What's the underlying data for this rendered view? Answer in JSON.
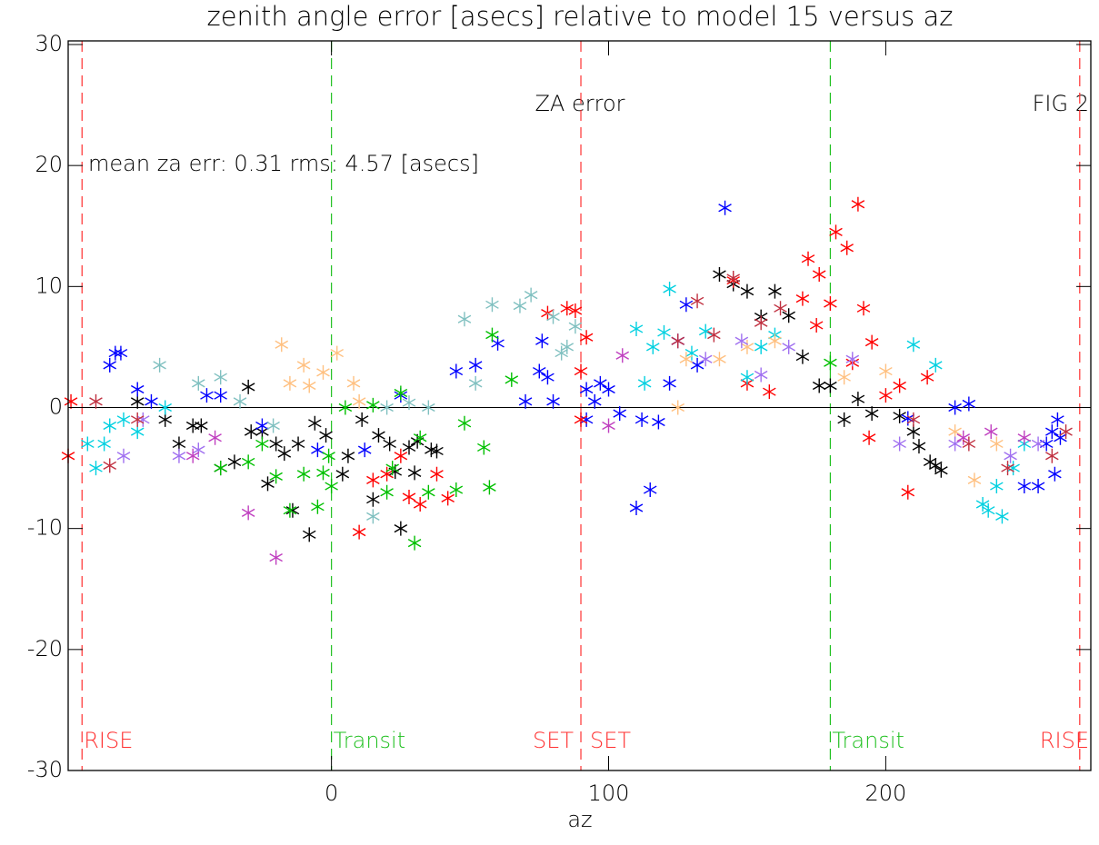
{
  "chart_data": {
    "type": "scatter",
    "title": "zenith angle error [asecs] relative to model 15 versus az",
    "x_label": "az",
    "annotations": [
      "ZA error",
      "FIG  2",
      "mean za err: 0.31 rms: 4.57 [asecs]"
    ],
    "xlim": [
      -95,
      274
    ],
    "ylim": [
      -30,
      30.3
    ],
    "xticks": [
      0,
      100,
      200
    ],
    "yticks": [
      -30,
      -20,
      -10,
      0,
      10,
      20,
      30
    ],
    "hlines": [
      0
    ],
    "vlines": [
      {
        "x": -90,
        "color": "#ff3030",
        "labels": [
          "RISE"
        ]
      },
      {
        "x": 0,
        "color": "#20c020",
        "labels": [
          "Transit"
        ]
      },
      {
        "x": 90,
        "color": "#ff3030",
        "labels": [
          "SET",
          "SET"
        ]
      },
      {
        "x": 180,
        "color": "#20c020",
        "labels": [
          "Transit"
        ]
      },
      {
        "x": 270,
        "color": "#ff3030",
        "labels": [
          "RISE"
        ]
      }
    ],
    "series": [
      {
        "color": "#000000",
        "x": [
          -70,
          -60,
          -55,
          -50,
          -47,
          -40,
          -35,
          -30,
          -29,
          -25,
          -23,
          -20,
          -17,
          -14,
          -12,
          -8,
          -6,
          -2,
          4,
          6,
          11,
          15,
          17,
          21,
          23,
          25,
          28,
          30,
          31,
          38,
          36,
          140,
          145,
          150,
          155,
          160,
          165,
          170,
          176,
          180,
          185,
          190,
          195,
          205,
          210,
          212,
          216,
          218,
          220
        ],
        "values": [
          0.5,
          -1,
          -3,
          -1.5,
          -1.5,
          -5,
          -4.5,
          1.7,
          -2,
          -2,
          -6.3,
          -3,
          -3.8,
          -8.5,
          -3,
          -10.5,
          -1.3,
          -2.3,
          -5.5,
          -4,
          -1,
          -7.6,
          -2.3,
          -3,
          -5.3,
          -10,
          -3.3,
          -5.4,
          -2.8,
          -3.6,
          -3.5,
          11,
          10.2,
          9.6,
          7.5,
          9.6,
          7.6,
          4.2,
          1.8,
          1.8,
          -1,
          0.7,
          -0.5,
          -0.7,
          -2,
          -3.2,
          -4.5,
          -4.8,
          -5.2
        ]
      },
      {
        "color": "#0000ff",
        "x": [
          -80,
          -78,
          -76,
          -70,
          -65,
          -45,
          -40,
          -25,
          -5,
          12,
          25,
          45,
          52,
          60,
          70,
          75,
          76,
          78,
          80,
          92,
          92,
          95,
          97,
          100,
          104,
          110,
          112,
          115,
          118,
          122,
          125,
          128,
          132,
          142,
          208,
          225,
          230,
          250,
          255,
          258,
          260,
          261,
          262,
          263
        ],
        "values": [
          3.5,
          4.5,
          4.5,
          1.5,
          0.5,
          1,
          1,
          -1.5,
          -3.5,
          -3.5,
          1,
          3,
          3.5,
          5.3,
          0.5,
          3,
          5.5,
          2.5,
          0.5,
          -1,
          1.5,
          0.5,
          2,
          1.5,
          -0.5,
          -8.3,
          -1,
          -6.8,
          -1.2,
          2,
          5.5,
          8.5,
          3.5,
          16.5,
          -0.9,
          0,
          0.3,
          -6.5,
          -6.5,
          -3,
          -2,
          -5.5,
          -1,
          -2.5
        ]
      },
      {
        "color": "#ff0000",
        "x": [
          -94,
          -95,
          10,
          15,
          20,
          25,
          28,
          32,
          38,
          42,
          78,
          85,
          88,
          90,
          90,
          92,
          145,
          150,
          158,
          170,
          172,
          175,
          176,
          180,
          182,
          186,
          188,
          190,
          192,
          195,
          194,
          200,
          205,
          208,
          215
        ],
        "values": [
          0.5,
          -4,
          -10.3,
          -6,
          -5.5,
          -4,
          -7.4,
          -8,
          -5.5,
          -7.5,
          7.8,
          8.2,
          8,
          3,
          -1,
          5.8,
          10.5,
          2,
          1.3,
          9,
          12.3,
          6.8,
          11,
          8.6,
          14.5,
          13.2,
          3.7,
          16.8,
          8.2,
          5.4,
          -2.5,
          1,
          1.8,
          -7,
          2.5
        ]
      },
      {
        "color": "#00c000",
        "x": [
          -40,
          -30,
          -25,
          -20,
          -15,
          -10,
          -5,
          -3,
          0,
          -1,
          5,
          15,
          20,
          22,
          25,
          30,
          32,
          35,
          45,
          48,
          55,
          57,
          58,
          65,
          180
        ],
        "values": [
          -5,
          -4.5,
          -3,
          -5.7,
          -8.5,
          -5.5,
          -8.2,
          -5.4,
          -6.5,
          -4,
          0,
          0.2,
          -7,
          -5,
          1.2,
          -11.2,
          -2.5,
          -7,
          -6.8,
          -1.3,
          -3.3,
          -6.6,
          6,
          2.3,
          3.7
        ]
      },
      {
        "color": "#00d0e0",
        "x": [
          -88,
          -85,
          -82,
          -80,
          -75,
          -70,
          -60,
          110,
          113,
          116,
          120,
          122,
          130,
          135,
          150,
          155,
          160,
          210,
          218,
          235,
          237,
          240,
          242,
          246,
          250
        ],
        "values": [
          -3,
          -5,
          -3,
          -1.5,
          -1,
          -2,
          0,
          6.5,
          2,
          5,
          6.2,
          9.8,
          4.5,
          6.3,
          2.5,
          5,
          6,
          5.2,
          3.5,
          -8,
          -8.5,
          -6.5,
          -9,
          -5,
          -3
        ]
      },
      {
        "color": "#80c0c0",
        "x": [
          -62,
          -48,
          -40,
          -33,
          -21,
          15,
          20,
          28,
          35,
          48,
          52,
          58,
          68,
          72,
          80,
          83,
          85,
          88
        ],
        "values": [
          3.5,
          2,
          2.5,
          0.5,
          -1.5,
          -9,
          0,
          0.4,
          0,
          7.3,
          2,
          8.5,
          8.4,
          9.3,
          7.5,
          4.5,
          5,
          6.7
        ]
      },
      {
        "color": "#ffc080",
        "x": [
          -18,
          -15,
          -10,
          -8,
          -3,
          2,
          8,
          10,
          125,
          128,
          140,
          150,
          160,
          185,
          200,
          225,
          232,
          240
        ],
        "values": [
          5.2,
          2,
          3.5,
          1.8,
          2.9,
          4.5,
          2,
          0.5,
          0,
          4,
          4,
          5,
          5.5,
          2.5,
          3,
          -2,
          -6,
          -3
        ]
      },
      {
        "color": "#a070f0",
        "x": [
          -75,
          -68,
          -55,
          -48,
          135,
          148,
          155,
          165,
          188,
          205,
          225,
          245,
          255
        ],
        "values": [
          -4,
          -1,
          -4,
          -3.5,
          4,
          5.5,
          2.7,
          5,
          4,
          -3,
          -3,
          -4,
          -3
        ]
      },
      {
        "color": "#c040c0",
        "x": [
          -50,
          -42,
          -30,
          -20,
          100,
          105,
          228,
          238,
          250
        ],
        "values": [
          -4,
          -2.5,
          -8.7,
          -12.4,
          -1.5,
          4.3,
          -2.5,
          -2,
          -2.5
        ]
      },
      {
        "color": "#c03040",
        "x": [
          -85,
          -80,
          -70,
          125,
          132,
          138,
          145,
          155,
          162,
          210,
          230,
          244,
          260,
          265
        ],
        "values": [
          0.5,
          -4.8,
          -1,
          5.5,
          8.8,
          6,
          10.7,
          7,
          8.2,
          -1,
          -3,
          -5,
          -4,
          -2
        ]
      }
    ]
  }
}
